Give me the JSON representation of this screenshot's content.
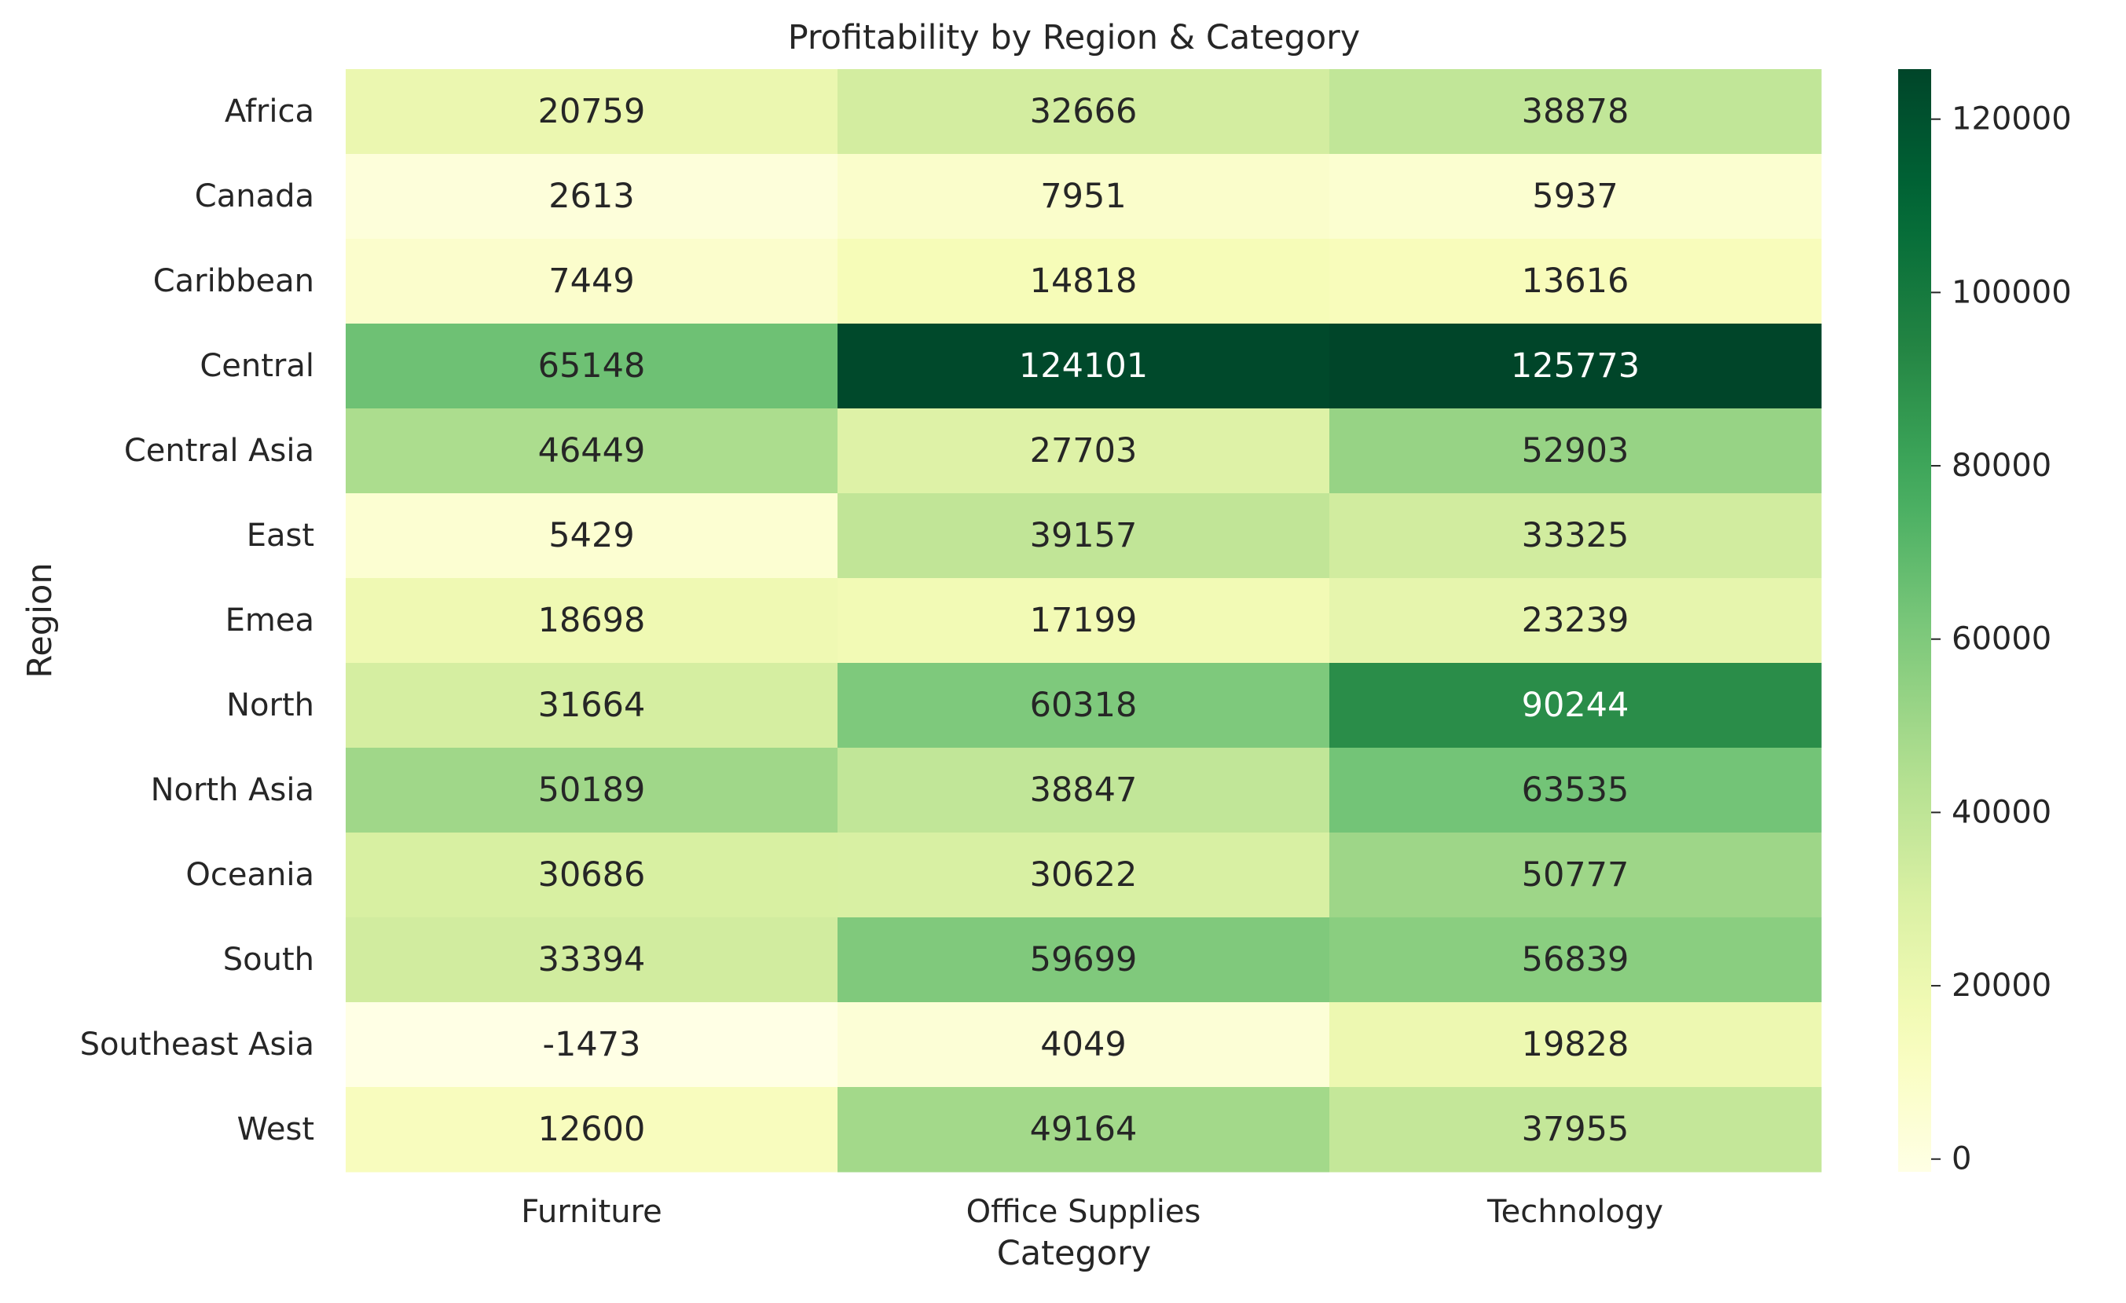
{
  "chart_data": {
    "type": "heatmap",
    "title": "Profitability by Region & Category",
    "xlabel": "Category",
    "ylabel": "Region",
    "columns": [
      "Furniture",
      "Office Supplies",
      "Technology"
    ],
    "rows": [
      "Africa",
      "Canada",
      "Caribbean",
      "Central",
      "Central Asia",
      "East",
      "Emea",
      "North",
      "North Asia",
      "Oceania",
      "South",
      "Southeast Asia",
      "West"
    ],
    "values": [
      [
        20759,
        32666,
        38878
      ],
      [
        2613,
        7951,
        5937
      ],
      [
        7449,
        14818,
        13616
      ],
      [
        65148,
        124101,
        125773
      ],
      [
        46449,
        27703,
        52903
      ],
      [
        5429,
        39157,
        33325
      ],
      [
        18698,
        17199,
        23239
      ],
      [
        31664,
        60318,
        90244
      ],
      [
        50189,
        38847,
        63535
      ],
      [
        30686,
        30622,
        50777
      ],
      [
        33394,
        59699,
        56839
      ],
      [
        -1473,
        4049,
        19828
      ],
      [
        12600,
        49164,
        37955
      ]
    ],
    "colormap": "YlGn",
    "color_range": [
      -1473,
      125773
    ],
    "colorbar": {
      "ticks": [
        0,
        20000,
        40000,
        60000,
        80000,
        100000,
        120000
      ],
      "tick_labels": [
        "0",
        "20000",
        "40000",
        "60000",
        "80000",
        "100000",
        "120000"
      ]
    },
    "grid": false
  }
}
